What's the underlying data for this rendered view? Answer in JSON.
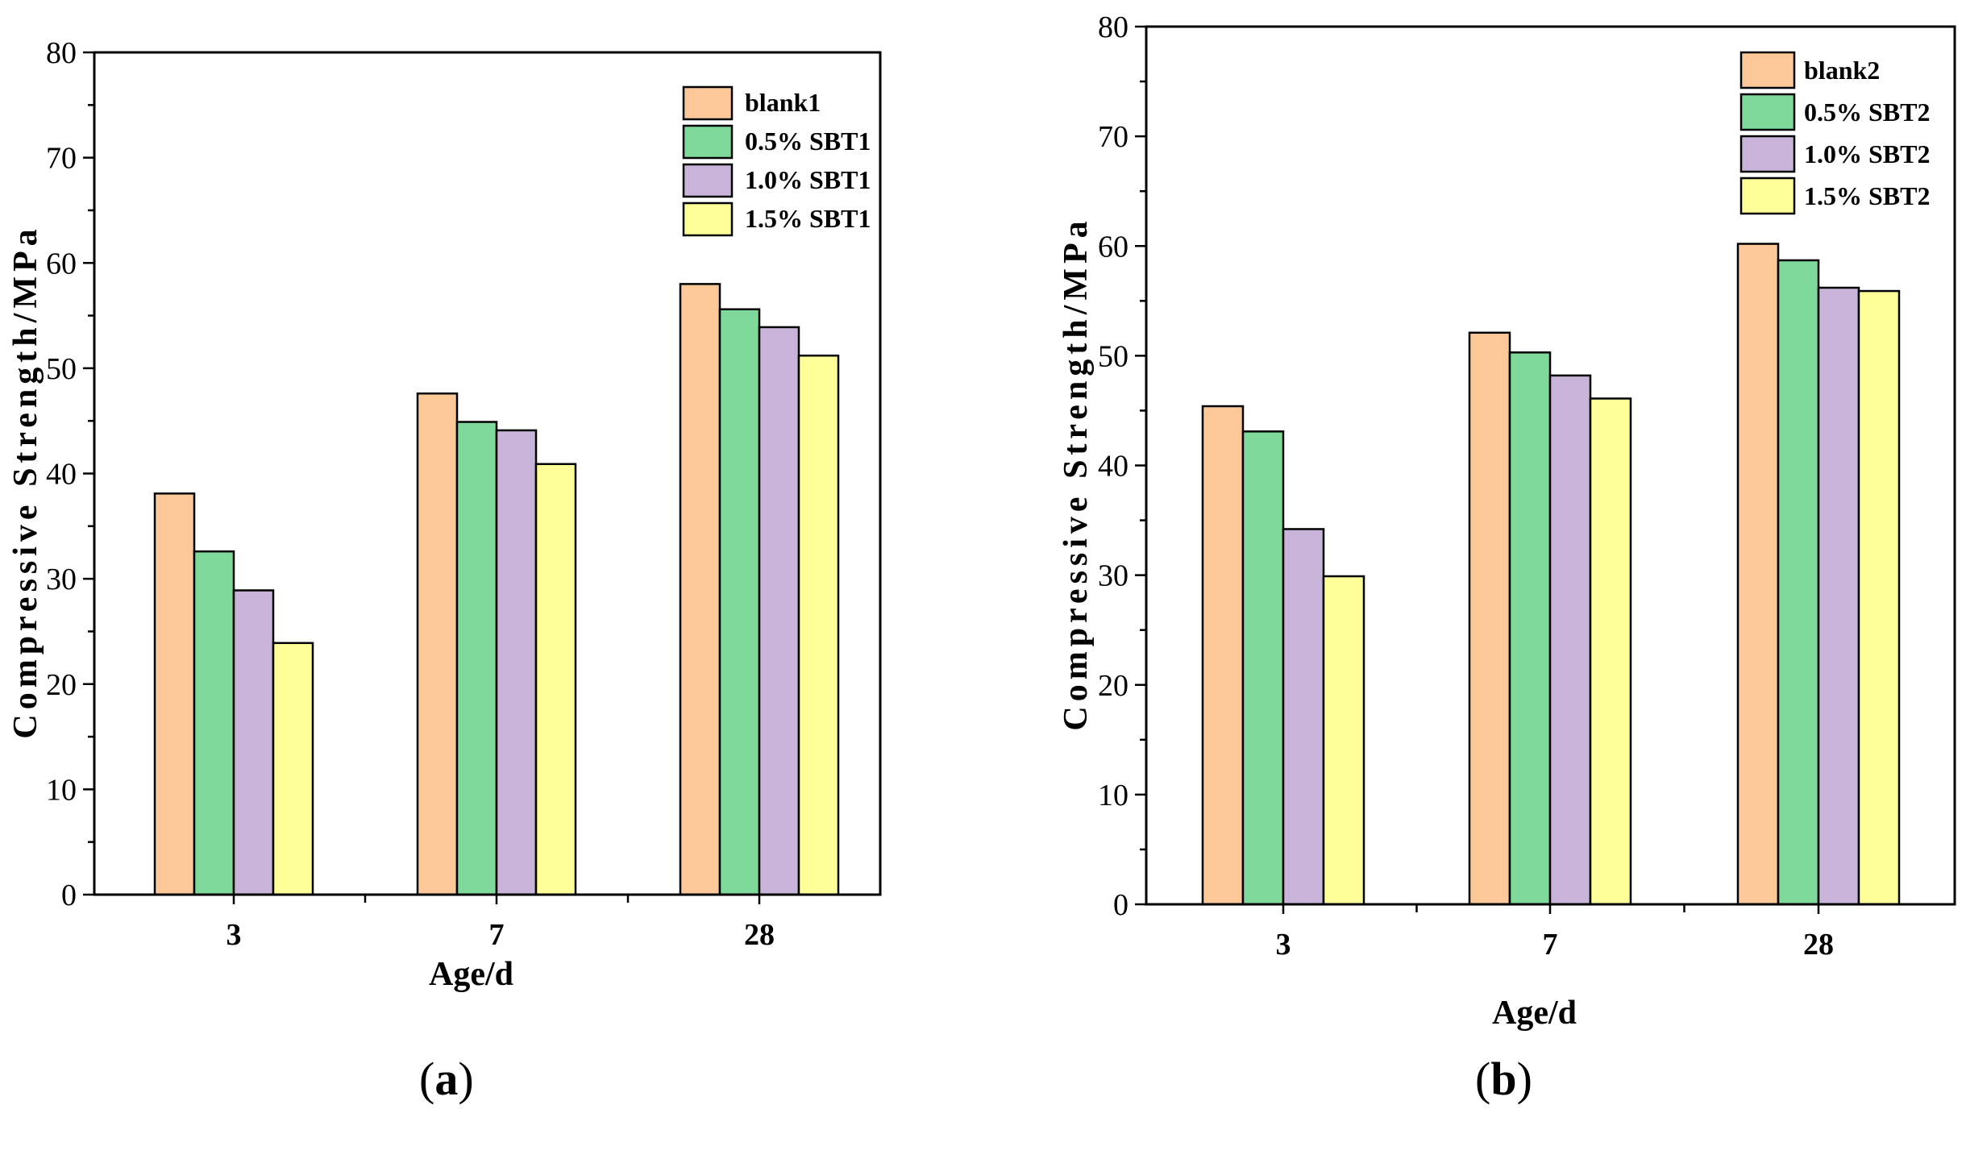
{
  "chart_data": [
    {
      "type": "bar",
      "panel": "(a)",
      "categories": [
        "3",
        "7",
        "28"
      ],
      "xlabel": "Age/d",
      "ylabel": "Compressive Strength/MPa",
      "ylim": [
        0,
        80
      ],
      "yticks": [
        "0",
        "10",
        "20",
        "30",
        "40",
        "50",
        "60",
        "70",
        "80"
      ],
      "legend_position": "top-right",
      "series": [
        {
          "name": "blank1",
          "color": "#FDC898",
          "values": [
            38.1,
            47.6,
            58.0
          ]
        },
        {
          "name": "0.5% SBT1",
          "color": "#7FD99A",
          "values": [
            32.6,
            44.9,
            55.6
          ]
        },
        {
          "name": "1.0% SBT1",
          "color": "#C8B4D9",
          "values": [
            28.9,
            44.1,
            53.9
          ]
        },
        {
          "name": "1.5% SBT1",
          "color": "#FFFF99",
          "values": [
            23.9,
            40.9,
            51.2
          ]
        }
      ]
    },
    {
      "type": "bar",
      "panel": "(b)",
      "categories": [
        "3",
        "7",
        "28"
      ],
      "xlabel": "Age/d",
      "ylabel": "Compressive Strength/MPa",
      "ylim": [
        0,
        80
      ],
      "yticks": [
        "0",
        "10",
        "20",
        "30",
        "40",
        "50",
        "60",
        "70",
        "80"
      ],
      "legend_position": "top-right",
      "series": [
        {
          "name": "blank2",
          "color": "#FDC898",
          "values": [
            45.4,
            52.1,
            60.2
          ]
        },
        {
          "name": "0.5% SBT2",
          "color": "#7FD99A",
          "values": [
            43.1,
            50.3,
            58.7
          ]
        },
        {
          "name": "1.0% SBT2",
          "color": "#C8B4D9",
          "values": [
            34.2,
            48.2,
            56.2
          ]
        },
        {
          "name": "1.5% SBT2",
          "color": "#FFFF99",
          "values": [
            29.9,
            46.1,
            55.9
          ]
        }
      ]
    }
  ],
  "labels": {
    "a": "a",
    "b": "b"
  }
}
